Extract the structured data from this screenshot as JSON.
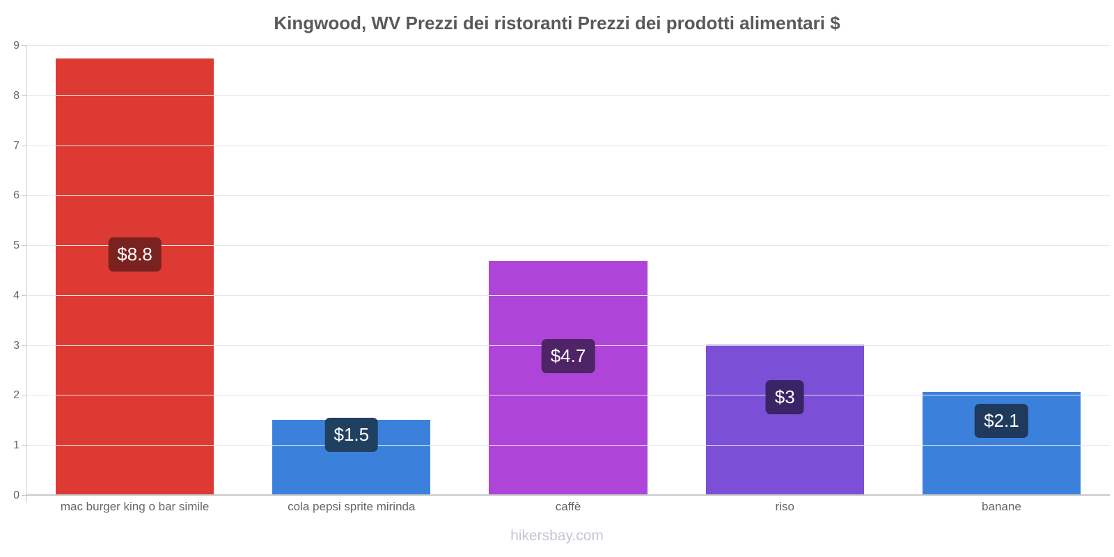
{
  "title": "Kingwood, WV Prezzi dei ristoranti Prezzi dei prodotti alimentari $",
  "footer": "hikersbay.com",
  "chart_data": {
    "type": "bar",
    "title": "Kingwood, WV Prezzi dei ristoranti Prezzi dei prodotti alimentari $",
    "categories": [
      "mac burger king o bar simile",
      "cola pepsi sprite mirinda",
      "caffè",
      "riso",
      "banane"
    ],
    "values": [
      8.75,
      1.52,
      4.69,
      3.03,
      2.08
    ],
    "value_labels": [
      "$8.8",
      "$1.5",
      "$4.7",
      "$3",
      "$2.1"
    ],
    "bar_colors": [
      "#dd3a34",
      "#3b81dc",
      "#ae44d8",
      "#7b4fd6",
      "#3b81dc"
    ],
    "badge_colors": [
      "#7a2220",
      "#204060",
      "#4e2466",
      "#392465",
      "#1f3a5c"
    ],
    "xlabel": "",
    "ylabel": "",
    "ylim": [
      0,
      9
    ],
    "yticks": [
      0,
      1,
      2,
      3,
      4,
      5,
      6,
      7,
      8,
      9
    ],
    "grid": true,
    "legend": "none",
    "grid_color": "#e7e7e7",
    "axis_color": "#c9c9c9",
    "tick_text_color": "#666666",
    "title_color": "#58595b",
    "footer_color": "#c5c8d2"
  }
}
